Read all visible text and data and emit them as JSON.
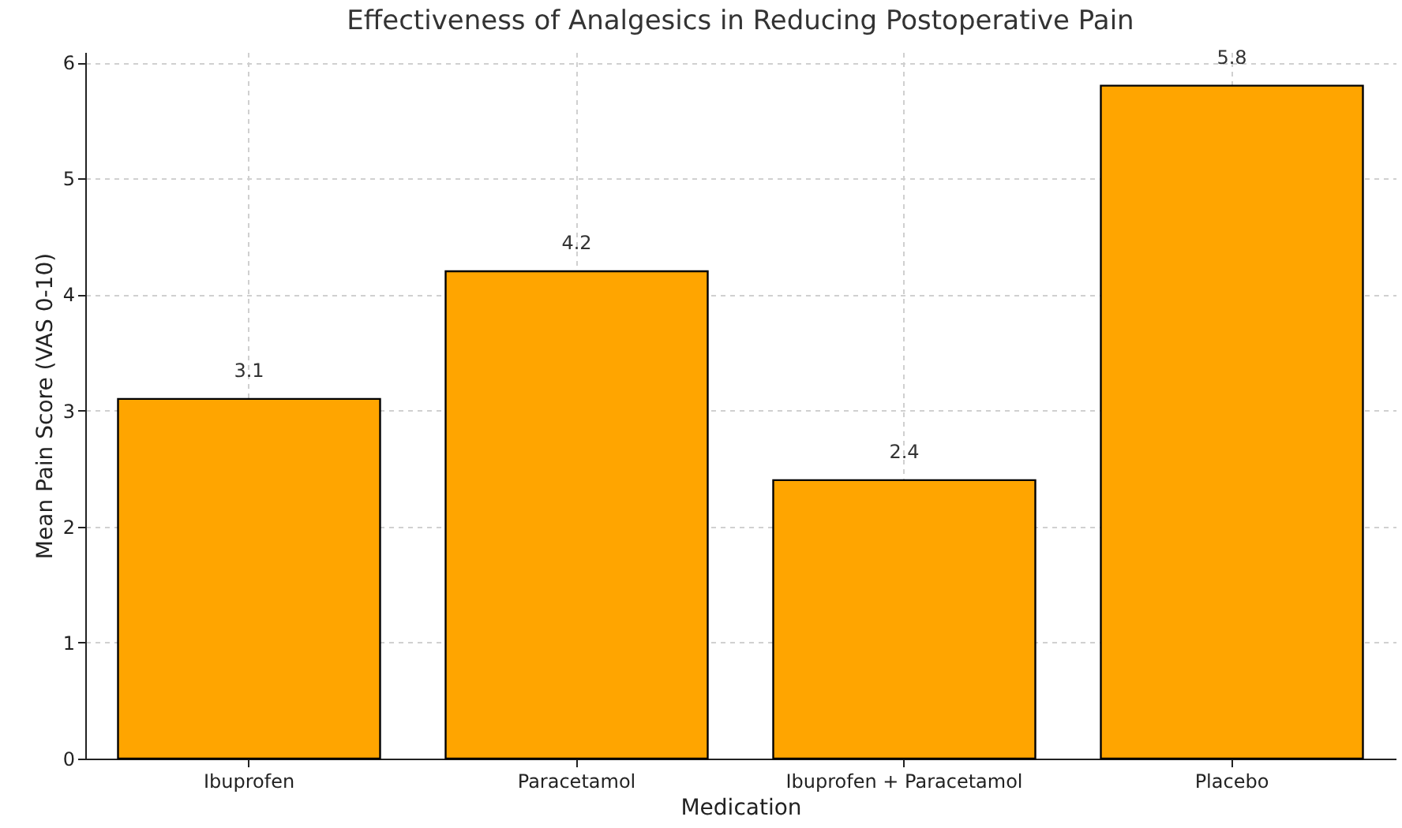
{
  "chart_data": {
    "type": "bar",
    "title": "Effectiveness of Analgesics in Reducing Postoperative Pain",
    "xlabel": "Medication",
    "ylabel": "Mean Pain Score (VAS 0-10)",
    "categories": [
      "Ibuprofen",
      "Paracetamol",
      "Ibuprofen + Paracetamol",
      "Placebo"
    ],
    "values": [
      3.1,
      4.2,
      2.4,
      5.8
    ],
    "color": "#ffa500",
    "ylim": [
      0,
      6.09
    ],
    "yticks": [
      0,
      1,
      2,
      3,
      4,
      5,
      6
    ],
    "grid": true,
    "data_labels": true
  }
}
